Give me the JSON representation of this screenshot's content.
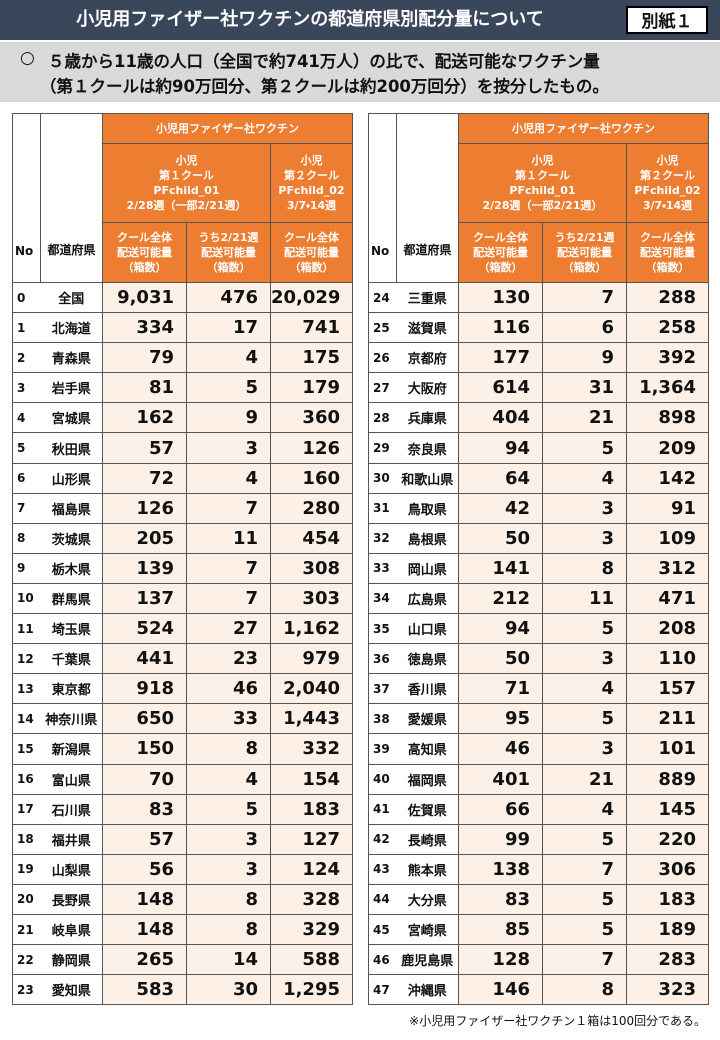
{
  "header": {
    "title": "小児用ファイザー社ワクチンの都道府県別配分量について",
    "badge": "別紙１"
  },
  "intro": {
    "bullet": "○",
    "lines": [
      "５歳から11歳の人口（全国で約741万人）の比で、配送可能なワクチン量",
      "（第１クールは約90万回分、第２クールは約200万回分）を按分したもの。"
    ]
  },
  "table_header": {
    "group": "小児用ファイザー社ワクチン",
    "round1": "小児\n第１クール\nPFchild_01\n2/28週（一部2/21週）",
    "round2": "小児\n第２クール\nPFchild_02\n3/7・14週",
    "no": "No",
    "pref": "都道府県",
    "col1": "クール全体\n配送可能量\n（箱数）",
    "col2": "うち2/21週\n配送可能量\n（箱数）",
    "col3": "クール全体\n配送可能量\n（箱数）"
  },
  "tables": [
    {
      "rows": [
        [
          "0",
          "全国",
          "9,031",
          "476",
          "20,029"
        ],
        [
          "1",
          "北海道",
          "334",
          "17",
          "741"
        ],
        [
          "2",
          "青森県",
          "79",
          "4",
          "175"
        ],
        [
          "3",
          "岩手県",
          "81",
          "5",
          "179"
        ],
        [
          "4",
          "宮城県",
          "162",
          "9",
          "360"
        ],
        [
          "5",
          "秋田県",
          "57",
          "3",
          "126"
        ],
        [
          "6",
          "山形県",
          "72",
          "4",
          "160"
        ],
        [
          "7",
          "福島県",
          "126",
          "7",
          "280"
        ],
        [
          "8",
          "茨城県",
          "205",
          "11",
          "454"
        ],
        [
          "9",
          "栃木県",
          "139",
          "7",
          "308"
        ],
        [
          "10",
          "群馬県",
          "137",
          "7",
          "303"
        ],
        [
          "11",
          "埼玉県",
          "524",
          "27",
          "1,162"
        ],
        [
          "12",
          "千葉県",
          "441",
          "23",
          "979"
        ],
        [
          "13",
          "東京都",
          "918",
          "46",
          "2,040"
        ],
        [
          "14",
          "神奈川県",
          "650",
          "33",
          "1,443"
        ],
        [
          "15",
          "新潟県",
          "150",
          "8",
          "332"
        ],
        [
          "16",
          "富山県",
          "70",
          "4",
          "154"
        ],
        [
          "17",
          "石川県",
          "83",
          "5",
          "183"
        ],
        [
          "18",
          "福井県",
          "57",
          "3",
          "127"
        ],
        [
          "19",
          "山梨県",
          "56",
          "3",
          "124"
        ],
        [
          "20",
          "長野県",
          "148",
          "8",
          "328"
        ],
        [
          "21",
          "岐阜県",
          "148",
          "8",
          "329"
        ],
        [
          "22",
          "静岡県",
          "265",
          "14",
          "588"
        ],
        [
          "23",
          "愛知県",
          "583",
          "30",
          "1,295"
        ]
      ]
    },
    {
      "rows": [
        [
          "24",
          "三重県",
          "130",
          "7",
          "288"
        ],
        [
          "25",
          "滋賀県",
          "116",
          "6",
          "258"
        ],
        [
          "26",
          "京都府",
          "177",
          "9",
          "392"
        ],
        [
          "27",
          "大阪府",
          "614",
          "31",
          "1,364"
        ],
        [
          "28",
          "兵庫県",
          "404",
          "21",
          "898"
        ],
        [
          "29",
          "奈良県",
          "94",
          "5",
          "209"
        ],
        [
          "30",
          "和歌山県",
          "64",
          "4",
          "142"
        ],
        [
          "31",
          "鳥取県",
          "42",
          "3",
          "91"
        ],
        [
          "32",
          "島根県",
          "50",
          "3",
          "109"
        ],
        [
          "33",
          "岡山県",
          "141",
          "8",
          "312"
        ],
        [
          "34",
          "広島県",
          "212",
          "11",
          "471"
        ],
        [
          "35",
          "山口県",
          "94",
          "5",
          "208"
        ],
        [
          "36",
          "徳島県",
          "50",
          "3",
          "110"
        ],
        [
          "37",
          "香川県",
          "71",
          "4",
          "157"
        ],
        [
          "38",
          "愛媛県",
          "95",
          "5",
          "211"
        ],
        [
          "39",
          "高知県",
          "46",
          "3",
          "101"
        ],
        [
          "40",
          "福岡県",
          "401",
          "21",
          "889"
        ],
        [
          "41",
          "佐賀県",
          "66",
          "4",
          "145"
        ],
        [
          "42",
          "長崎県",
          "99",
          "5",
          "220"
        ],
        [
          "43",
          "熊本県",
          "138",
          "7",
          "306"
        ],
        [
          "44",
          "大分県",
          "83",
          "5",
          "183"
        ],
        [
          "45",
          "宮崎県",
          "85",
          "5",
          "189"
        ],
        [
          "46",
          "鹿児島県",
          "128",
          "7",
          "283"
        ],
        [
          "47",
          "沖縄県",
          "146",
          "8",
          "323"
        ]
      ]
    }
  ],
  "footnote": "※小児用ファイザー社ワクチン１箱は100回分である。"
}
